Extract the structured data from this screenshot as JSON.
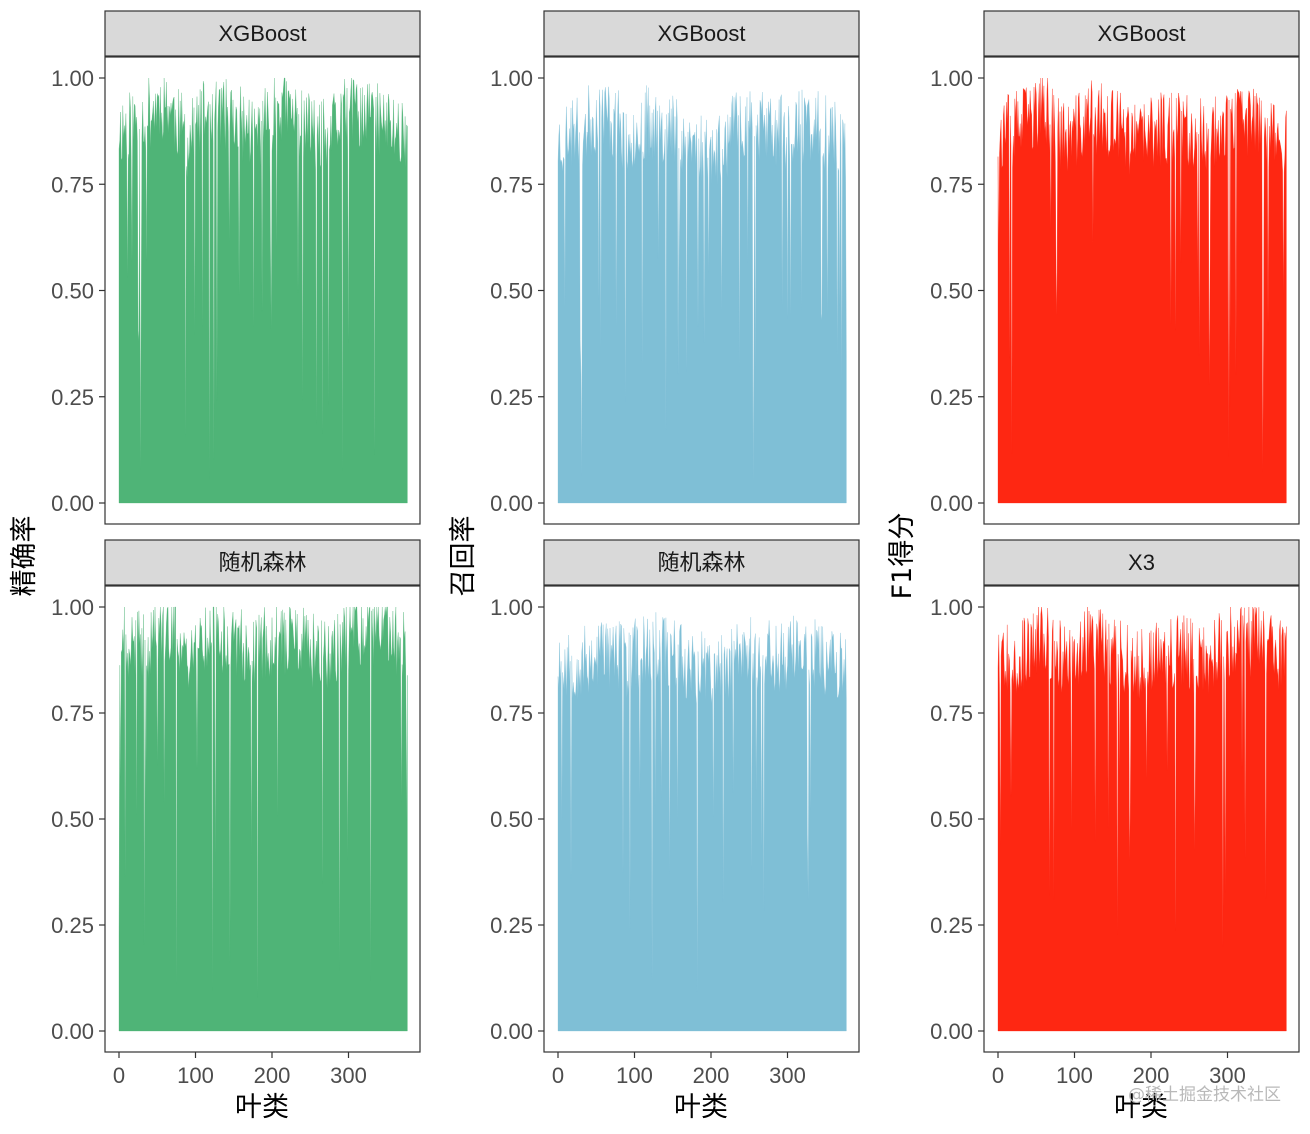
{
  "figure": {
    "watermark": "@稀土掘金技术社区"
  },
  "columns": [
    {
      "ylabel": "精确率",
      "xlabel": "叶类",
      "color": "#4fb477"
    },
    {
      "ylabel": "召回率",
      "xlabel": "叶类",
      "color": "#7fbfd6"
    },
    {
      "ylabel": "F1得分",
      "xlabel": "叶类",
      "color": "#fe2712"
    }
  ],
  "chart_data": [
    {
      "type": "area",
      "title": "XGBoost",
      "ylabel": "精确率",
      "xlabel": "",
      "xlim": [
        0,
        378
      ],
      "ylim": [
        0,
        1
      ],
      "xticks": [],
      "yticks": [
        "0.00",
        "0.25",
        "0.50",
        "0.75",
        "1.00"
      ],
      "x": [
        0,
        30,
        60,
        90,
        120,
        150,
        180,
        210,
        240,
        270,
        300,
        330,
        360,
        377
      ],
      "y": [
        0.88,
        0.9,
        0.95,
        0.85,
        0.93,
        0.9,
        0.87,
        0.94,
        0.89,
        0.86,
        0.92,
        0.91,
        0.88,
        0.87
      ],
      "color": "#4fb477",
      "seed": 11
    },
    {
      "type": "area",
      "title": "XGBoost",
      "ylabel": "召回率",
      "xlabel": "",
      "xlim": [
        0,
        378
      ],
      "ylim": [
        0,
        1
      ],
      "xticks": [],
      "yticks": [
        "0.00",
        "0.25",
        "0.50",
        "0.75",
        "1.00"
      ],
      "x": [
        0,
        30,
        60,
        90,
        120,
        150,
        180,
        210,
        240,
        270,
        300,
        330,
        360,
        377
      ],
      "y": [
        0.85,
        0.88,
        0.92,
        0.86,
        0.9,
        0.88,
        0.84,
        0.82,
        0.9,
        0.88,
        0.87,
        0.89,
        0.86,
        0.84
      ],
      "color": "#7fbfd6",
      "seed": 23
    },
    {
      "type": "area",
      "title": "XGBoost",
      "ylabel": "F1得分",
      "xlabel": "",
      "xlim": [
        0,
        378
      ],
      "ylim": [
        0,
        1
      ],
      "xticks": [],
      "yticks": [
        "0.00",
        "0.25",
        "0.50",
        "0.75",
        "1.00"
      ],
      "x": [
        0,
        30,
        60,
        90,
        120,
        150,
        180,
        210,
        240,
        270,
        300,
        330,
        360,
        377
      ],
      "y": [
        0.86,
        0.89,
        0.93,
        0.85,
        0.91,
        0.89,
        0.85,
        0.88,
        0.89,
        0.86,
        0.9,
        0.9,
        0.87,
        0.85
      ],
      "color": "#fe2712",
      "seed": 37
    },
    {
      "type": "area",
      "title": "随机森林",
      "ylabel": "精确率",
      "xlabel": "叶类",
      "xlim": [
        0,
        378
      ],
      "ylim": [
        0,
        1
      ],
      "xticks": [
        "0",
        "100",
        "200",
        "300"
      ],
      "yticks": [
        "0.00",
        "0.25",
        "0.50",
        "0.75",
        "1.00"
      ],
      "x": [
        0,
        30,
        60,
        90,
        120,
        150,
        180,
        210,
        240,
        270,
        300,
        330,
        360,
        377
      ],
      "y": [
        0.92,
        0.9,
        0.96,
        0.88,
        0.94,
        0.92,
        0.9,
        0.93,
        0.91,
        0.88,
        0.94,
        0.95,
        0.93,
        0.9
      ],
      "color": "#4fb477",
      "seed": 41
    },
    {
      "type": "area",
      "title": "随机森林",
      "ylabel": "召回率",
      "xlabel": "叶类",
      "xlim": [
        0,
        378
      ],
      "ylim": [
        0,
        1
      ],
      "xticks": [
        "0",
        "100",
        "200",
        "300"
      ],
      "yticks": [
        "0.00",
        "0.25",
        "0.50",
        "0.75",
        "1.00"
      ],
      "x": [
        0,
        30,
        60,
        90,
        120,
        150,
        180,
        210,
        240,
        270,
        300,
        330,
        360,
        377
      ],
      "y": [
        0.88,
        0.86,
        0.9,
        0.87,
        0.91,
        0.89,
        0.86,
        0.85,
        0.9,
        0.88,
        0.89,
        0.9,
        0.87,
        0.86
      ],
      "color": "#7fbfd6",
      "seed": 53
    },
    {
      "type": "area",
      "title": "X3",
      "ylabel": "F1得分",
      "xlabel": "叶类",
      "xlim": [
        0,
        378
      ],
      "ylim": [
        0,
        1
      ],
      "xticks": [
        "0",
        "100",
        "200",
        "300"
      ],
      "yticks": [
        "0.00",
        "0.25",
        "0.50",
        "0.75",
        "1.00"
      ],
      "x": [
        0,
        30,
        60,
        90,
        120,
        150,
        180,
        210,
        240,
        270,
        300,
        330,
        360,
        377
      ],
      "y": [
        0.9,
        0.88,
        0.93,
        0.87,
        0.92,
        0.9,
        0.87,
        0.89,
        0.9,
        0.87,
        0.92,
        0.92,
        0.9,
        0.87
      ],
      "color": "#fe2712",
      "seed": 67
    }
  ]
}
